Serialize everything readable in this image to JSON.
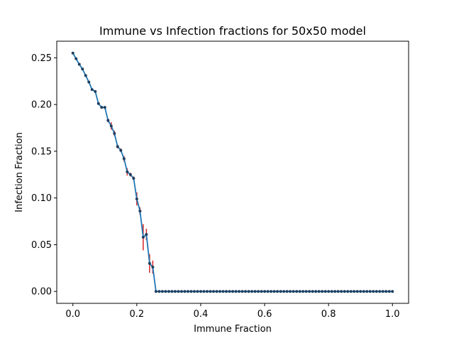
{
  "chart_data": {
    "type": "line",
    "title": "Immune vs Infection fractions for 50x50 model",
    "xlabel": "Immune Fraction",
    "ylabel": "Infection Fraction",
    "xlim": [
      -0.0505,
      1.0505
    ],
    "ylim": [
      -0.01275,
      0.26775
    ],
    "xticks": [
      0.0,
      0.2,
      0.4,
      0.6,
      0.8,
      1.0
    ],
    "xtick_labels": [
      "0.0",
      "0.2",
      "0.4",
      "0.6",
      "0.8",
      "1.0"
    ],
    "yticks": [
      0.0,
      0.05,
      0.1,
      0.15,
      0.2,
      0.25
    ],
    "ytick_labels": [
      "0.00",
      "0.05",
      "0.10",
      "0.15",
      "0.20",
      "0.25"
    ],
    "grid": false,
    "line_color": "#1f77b4",
    "marker_color": "#1f3f5f",
    "errorbar_color": "#d62728",
    "series": [
      {
        "x": [
          0.0,
          0.01,
          0.02,
          0.03,
          0.04,
          0.05,
          0.06,
          0.07,
          0.08,
          0.09,
          0.1,
          0.11,
          0.12,
          0.13,
          0.14,
          0.15,
          0.16,
          0.17,
          0.18,
          0.19,
          0.2,
          0.21,
          0.22,
          0.23,
          0.24,
          0.25,
          0.26,
          0.27,
          0.28,
          0.29,
          0.3,
          0.31,
          0.32,
          0.33,
          0.34,
          0.35,
          0.36,
          0.37,
          0.38,
          0.39,
          0.4,
          0.41,
          0.42,
          0.43,
          0.44,
          0.45,
          0.46,
          0.47,
          0.48,
          0.49,
          0.5,
          0.51,
          0.52,
          0.53,
          0.54,
          0.55,
          0.56,
          0.57,
          0.58,
          0.59,
          0.6,
          0.61,
          0.62,
          0.63,
          0.64,
          0.65,
          0.66,
          0.67,
          0.68,
          0.69,
          0.7,
          0.71,
          0.72,
          0.73,
          0.74,
          0.75,
          0.76,
          0.77,
          0.78,
          0.79,
          0.8,
          0.81,
          0.82,
          0.83,
          0.84,
          0.85,
          0.86,
          0.87,
          0.88,
          0.89,
          0.9,
          0.91,
          0.92,
          0.93,
          0.94,
          0.95,
          0.96,
          0.97,
          0.98,
          0.99,
          1.0
        ],
        "y": [
          0.255,
          0.249,
          0.243,
          0.238,
          0.231,
          0.224,
          0.216,
          0.214,
          0.201,
          0.197,
          0.197,
          0.183,
          0.177,
          0.169,
          0.155,
          0.151,
          0.142,
          0.128,
          0.125,
          0.121,
          0.099,
          0.086,
          0.058,
          0.061,
          0.03,
          0.026,
          0.0,
          0.0,
          0.0,
          0.0,
          0.0,
          0.0,
          0.0,
          0.0,
          0.0,
          0.0,
          0.0,
          0.0,
          0.0,
          0.0,
          0.0,
          0.0,
          0.0,
          0.0,
          0.0,
          0.0,
          0.0,
          0.0,
          0.0,
          0.0,
          0.0,
          0.0,
          0.0,
          0.0,
          0.0,
          0.0,
          0.0,
          0.0,
          0.0,
          0.0,
          0.0,
          0.0,
          0.0,
          0.0,
          0.0,
          0.0,
          0.0,
          0.0,
          0.0,
          0.0,
          0.0,
          0.0,
          0.0,
          0.0,
          0.0,
          0.0,
          0.0,
          0.0,
          0.0,
          0.0,
          0.0,
          0.0,
          0.0,
          0.0,
          0.0,
          0.0,
          0.0,
          0.0,
          0.0,
          0.0,
          0.0,
          0.0,
          0.0,
          0.0,
          0.0,
          0.0,
          0.0,
          0.0,
          0.0,
          0.0,
          0.0
        ],
        "yerr": [
          0.001,
          0.001,
          0.001,
          0.001,
          0.001,
          0.001,
          0.001,
          0.001,
          0.001,
          0.001,
          0.001,
          0.002,
          0.004,
          0.003,
          0.002,
          0.002,
          0.003,
          0.004,
          0.002,
          0.002,
          0.007,
          0.004,
          0.014,
          0.006,
          0.01,
          0.007,
          0.0,
          0.0,
          0.0,
          0.0,
          0.0,
          0.0,
          0.0,
          0.0,
          0.0,
          0.0,
          0.0,
          0.0,
          0.0,
          0.0,
          0.0,
          0.0,
          0.0,
          0.0,
          0.0,
          0.0,
          0.0,
          0.0,
          0.0,
          0.0,
          0.0,
          0.0,
          0.0,
          0.0,
          0.0,
          0.0,
          0.0,
          0.0,
          0.0,
          0.0,
          0.0,
          0.0,
          0.0,
          0.0,
          0.0,
          0.0,
          0.0,
          0.0,
          0.0,
          0.0,
          0.0,
          0.0,
          0.0,
          0.0,
          0.0,
          0.0,
          0.0,
          0.0,
          0.0,
          0.0,
          0.0,
          0.0,
          0.0,
          0.0,
          0.0,
          0.0,
          0.0,
          0.0,
          0.0,
          0.0,
          0.0,
          0.0,
          0.0,
          0.0,
          0.0,
          0.0,
          0.0,
          0.0,
          0.0,
          0.0,
          0.0
        ]
      }
    ]
  }
}
